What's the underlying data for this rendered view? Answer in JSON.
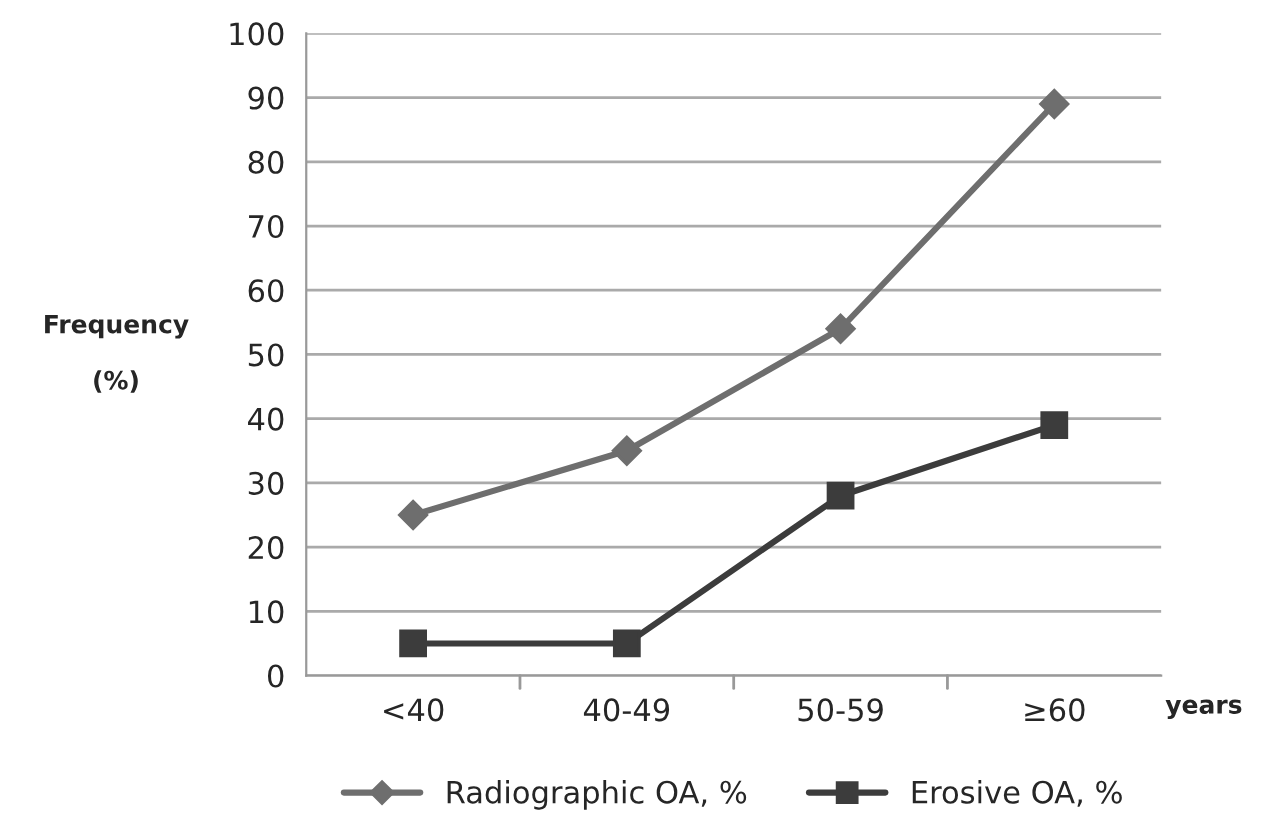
{
  "chart_data": {
    "type": "line",
    "ylabel": "Frequency\n\n(%)",
    "xlabel": "years",
    "categories": [
      "<40",
      "40-49",
      "50-59",
      "≥60"
    ],
    "series": [
      {
        "name": "Radiographic OA, %",
        "color": "#6e6e6e",
        "marker": "diamond",
        "values": [
          25,
          35,
          54,
          89
        ]
      },
      {
        "name": "Erosive OA, %",
        "color": "#3c3c3c",
        "marker": "square",
        "values": [
          5,
          5,
          28,
          39
        ]
      }
    ],
    "ylim": [
      0,
      100
    ],
    "yticks": [
      0,
      10,
      20,
      30,
      40,
      50,
      60,
      70,
      80,
      90,
      100
    ],
    "grid": "y",
    "legend": "bottom",
    "line_style": "solid"
  }
}
